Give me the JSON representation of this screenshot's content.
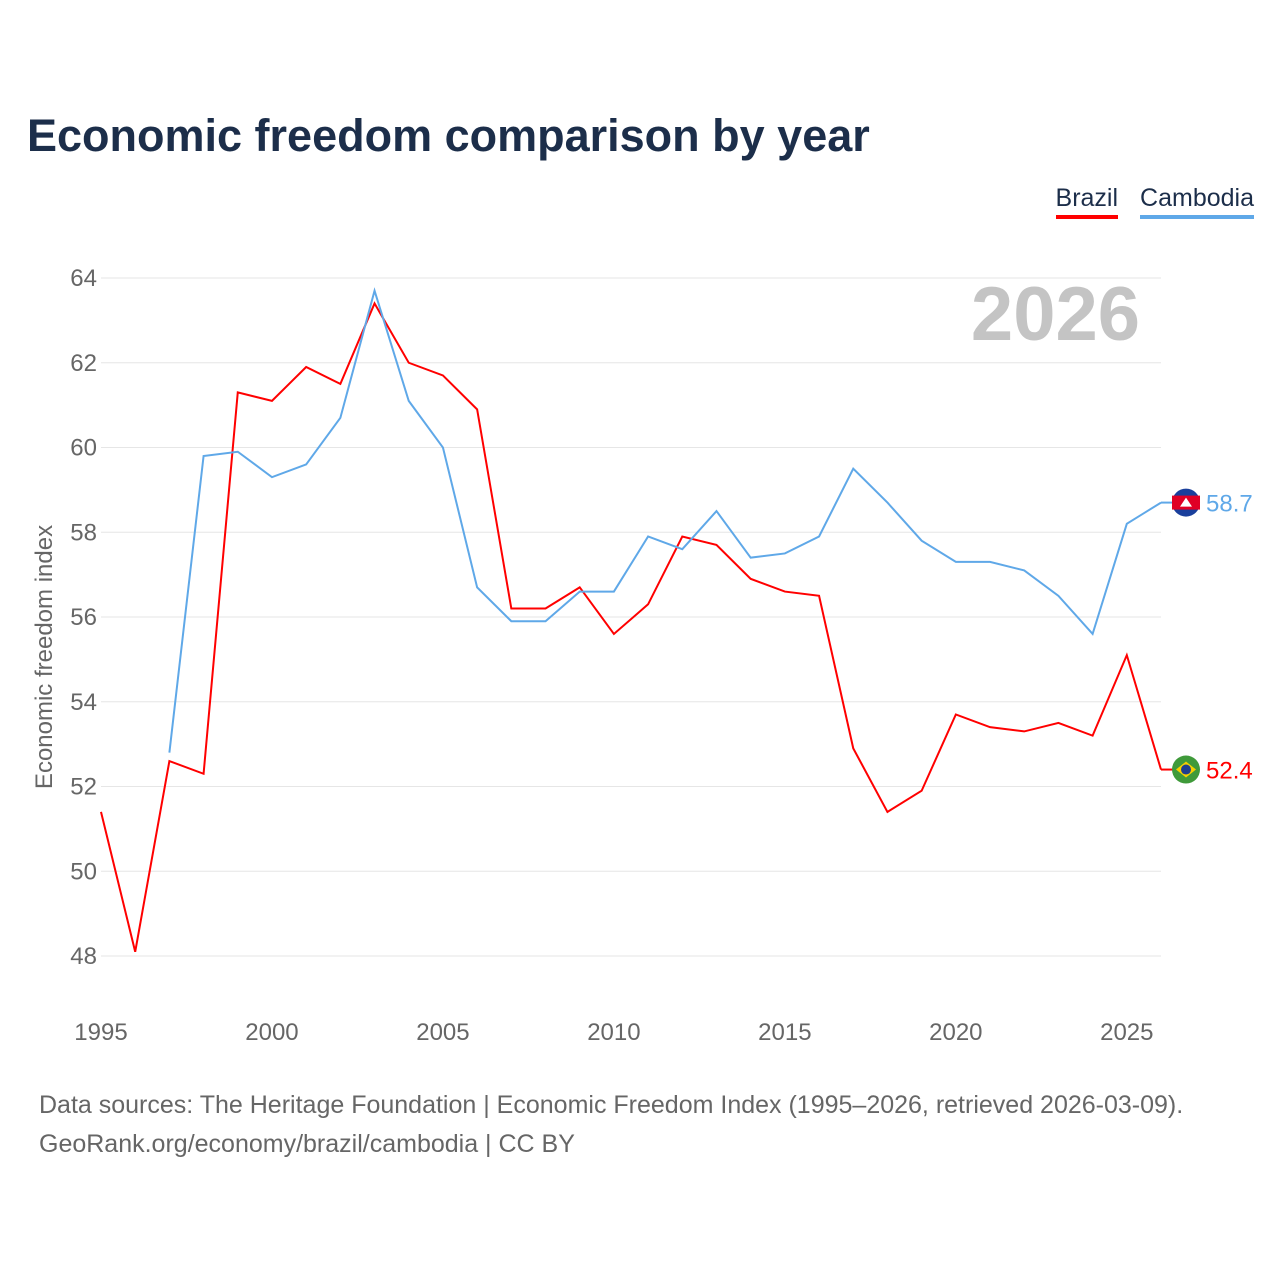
{
  "chart_data": {
    "type": "line",
    "title": "Economic freedom comparison by year",
    "ylabel": "Economic freedom index",
    "xlabel": "",
    "year_label": "2026",
    "ylim": [
      48,
      64
    ],
    "xlim": [
      1995,
      2026
    ],
    "yticks": [
      48,
      50,
      52,
      54,
      56,
      58,
      60,
      62,
      64
    ],
    "xticks": [
      1995,
      2000,
      2005,
      2010,
      2015,
      2020,
      2025
    ],
    "grid": true,
    "legend_position": "top-right",
    "series": [
      {
        "name": "Brazil",
        "color": "#ff0000",
        "end_label": "52.4",
        "x": [
          1995,
          1996,
          1997,
          1998,
          1999,
          2000,
          2001,
          2002,
          2003,
          2004,
          2005,
          2006,
          2007,
          2008,
          2009,
          2010,
          2011,
          2012,
          2013,
          2014,
          2015,
          2016,
          2017,
          2018,
          2019,
          2020,
          2021,
          2022,
          2023,
          2024,
          2025,
          2026
        ],
        "values": [
          51.4,
          48.1,
          52.6,
          52.3,
          61.3,
          61.1,
          61.9,
          61.5,
          63.4,
          62.0,
          61.7,
          60.9,
          56.2,
          56.2,
          56.7,
          55.6,
          56.3,
          57.9,
          57.7,
          56.9,
          56.6,
          56.5,
          52.9,
          51.4,
          51.9,
          53.7,
          53.4,
          53.3,
          53.5,
          53.2,
          55.1,
          52.4
        ]
      },
      {
        "name": "Cambodia",
        "color": "#5fa8e8",
        "end_label": "58.7",
        "x": [
          1997,
          1998,
          1999,
          2000,
          2001,
          2002,
          2003,
          2004,
          2005,
          2006,
          2007,
          2008,
          2009,
          2010,
          2011,
          2012,
          2013,
          2014,
          2015,
          2016,
          2017,
          2018,
          2019,
          2020,
          2021,
          2022,
          2023,
          2024,
          2025,
          2026
        ],
        "values": [
          52.8,
          59.8,
          59.9,
          59.3,
          59.6,
          60.7,
          63.7,
          61.1,
          60.0,
          56.7,
          55.9,
          55.9,
          56.6,
          56.6,
          57.9,
          57.6,
          58.5,
          57.4,
          57.5,
          57.9,
          59.5,
          58.7,
          57.8,
          57.3,
          57.3,
          57.1,
          56.5,
          55.6,
          58.2,
          58.7
        ]
      }
    ]
  },
  "source": {
    "line1": "Data sources: The Heritage Foundation | Economic Freedom Index (1995–2026, retrieved 2026-03-09).",
    "line2": "GeoRank.org/economy/brazil/cambodia | CC BY"
  }
}
